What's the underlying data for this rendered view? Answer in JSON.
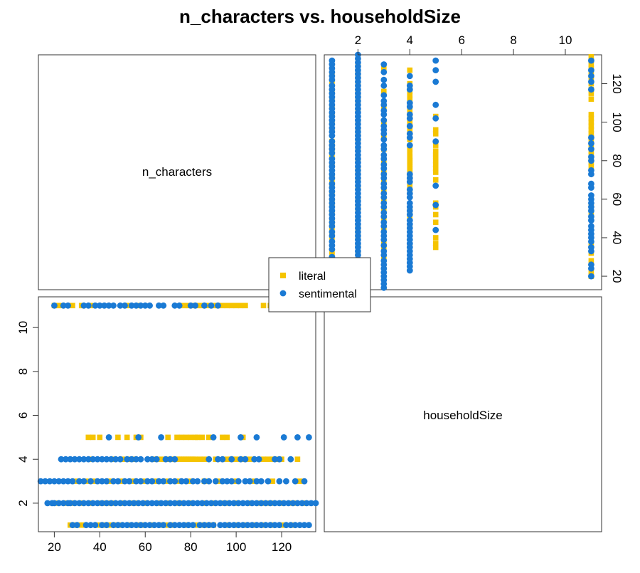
{
  "chart_data": {
    "type": "scatter",
    "kind": "scatterplot-matrix",
    "title": "n_characters vs. householdSize",
    "variables": [
      "n_characters",
      "householdSize"
    ],
    "axes": {
      "n_characters": {
        "range": [
          13,
          135
        ],
        "ticks": [
          20,
          40,
          60,
          80,
          100,
          120
        ]
      },
      "householdSize": {
        "range": [
          0.7,
          11.4
        ],
        "ticks": [
          2,
          4,
          6,
          8,
          10
        ]
      }
    },
    "legend": {
      "placement": "center",
      "entries": [
        "literal",
        "sentimental"
      ]
    },
    "grid": false,
    "series": [
      {
        "name": "literal",
        "marker": "square",
        "color": "#F5C400",
        "points": [
          {
            "householdSize": 1,
            "values": [
              27,
              29,
              31,
              33,
              40,
              42,
              44,
              47,
              49,
              53,
              57,
              59,
              63,
              67,
              70,
              72,
              78,
              83,
              86,
              90,
              96,
              100,
              104,
              108,
              112,
              116,
              121,
              125
            ]
          },
          {
            "householdSize": 2,
            "values": [
              21,
              25,
              28,
              32,
              36,
              41,
              45,
              50,
              55,
              60,
              66,
              70,
              75,
              80,
              86,
              90,
              95,
              100,
              106,
              111,
              115,
              120,
              125,
              130
            ]
          },
          {
            "householdSize": 3,
            "values": [
              30,
              34,
              38,
              44,
              50,
              55,
              60,
              65,
              70,
              75,
              80,
              86,
              92,
              100,
              108,
              116,
              128
            ]
          },
          {
            "householdSize": 4,
            "values": [
              36,
              46,
              50,
              53,
              55,
              64,
              67,
              70,
              72,
              74,
              75,
              76,
              77,
              78,
              79,
              80,
              81,
              82,
              84,
              86,
              91,
              96,
              98,
              100,
              103,
              106,
              112,
              114,
              116,
              118,
              120,
              127
            ]
          },
          {
            "householdSize": 5,
            "values": [
              35,
              37,
              40,
              48,
              52,
              56,
              58,
              70,
              74,
              76,
              78,
              80,
              82,
              83,
              85,
              88,
              94,
              96,
              103
            ]
          },
          {
            "householdSize": 11,
            "values": [
              20,
              22,
              28,
              32,
              36,
              52,
              57,
              77,
              79,
              81,
              83,
              85,
              88,
              90,
              92,
              94,
              96,
              98,
              100,
              102,
              104,
              112,
              115,
              117,
              120,
              122,
              124,
              126,
              128,
              130,
              132,
              134
            ]
          }
        ]
      },
      {
        "name": "sentimental",
        "marker": "circle",
        "color": "#1A7AD4",
        "points": [
          {
            "householdSize": 1,
            "values": [
              28,
              30,
              34,
              36,
              38,
              41,
              43,
              46,
              48,
              50,
              52,
              54,
              56,
              58,
              60,
              62,
              64,
              66,
              68,
              71,
              73,
              75,
              77,
              79,
              81,
              84,
              86,
              88,
              90,
              93,
              95,
              97,
              99,
              101,
              103,
              105,
              107,
              109,
              111,
              113,
              115,
              117,
              119,
              122,
              124,
              126,
              128,
              130,
              132
            ]
          },
          {
            "householdSize": 2,
            "values": [
              17,
              19,
              20,
              22,
              24,
              26,
              27,
              29,
              31,
              33,
              35,
              37,
              39,
              41,
              43,
              45,
              47,
              49,
              51,
              53,
              55,
              57,
              59,
              61,
              63,
              65,
              67,
              69,
              71,
              73,
              75,
              77,
              79,
              81,
              83,
              85,
              87,
              89,
              91,
              93,
              95,
              97,
              99,
              101,
              103,
              105,
              107,
              109,
              111,
              113,
              115,
              117,
              119,
              121,
              123,
              125,
              127,
              129,
              131,
              133,
              135
            ]
          },
          {
            "householdSize": 3,
            "values": [
              14,
              16,
              18,
              20,
              22,
              24,
              26,
              28,
              31,
              33,
              36,
              39,
              41,
              43,
              46,
              48,
              51,
              53,
              56,
              58,
              61,
              63,
              66,
              68,
              71,
              73,
              76,
              78,
              81,
              83,
              86,
              88,
              91,
              94,
              96,
              98,
              101,
              104,
              106,
              109,
              111,
              114,
              119,
              122,
              126,
              130
            ]
          },
          {
            "householdSize": 4,
            "values": [
              23,
              25,
              27,
              29,
              31,
              33,
              35,
              37,
              39,
              41,
              43,
              45,
              47,
              49,
              52,
              54,
              56,
              58,
              61,
              63,
              65,
              69,
              71,
              73,
              88,
              92,
              94,
              98,
              102,
              104,
              108,
              110,
              117,
              119,
              124
            ]
          },
          {
            "householdSize": 5,
            "values": [
              44,
              57,
              67,
              90,
              102,
              109,
              121,
              127,
              132
            ]
          },
          {
            "householdSize": 11,
            "values": [
              20,
              24,
              26,
              33,
              35,
              38,
              40,
              42,
              44,
              46,
              49,
              51,
              54,
              56,
              58,
              60,
              62,
              66,
              68,
              73,
              75,
              80,
              82,
              86,
              89,
              92,
              117,
              121,
              124,
              127,
              132
            ]
          }
        ]
      }
    ]
  }
}
